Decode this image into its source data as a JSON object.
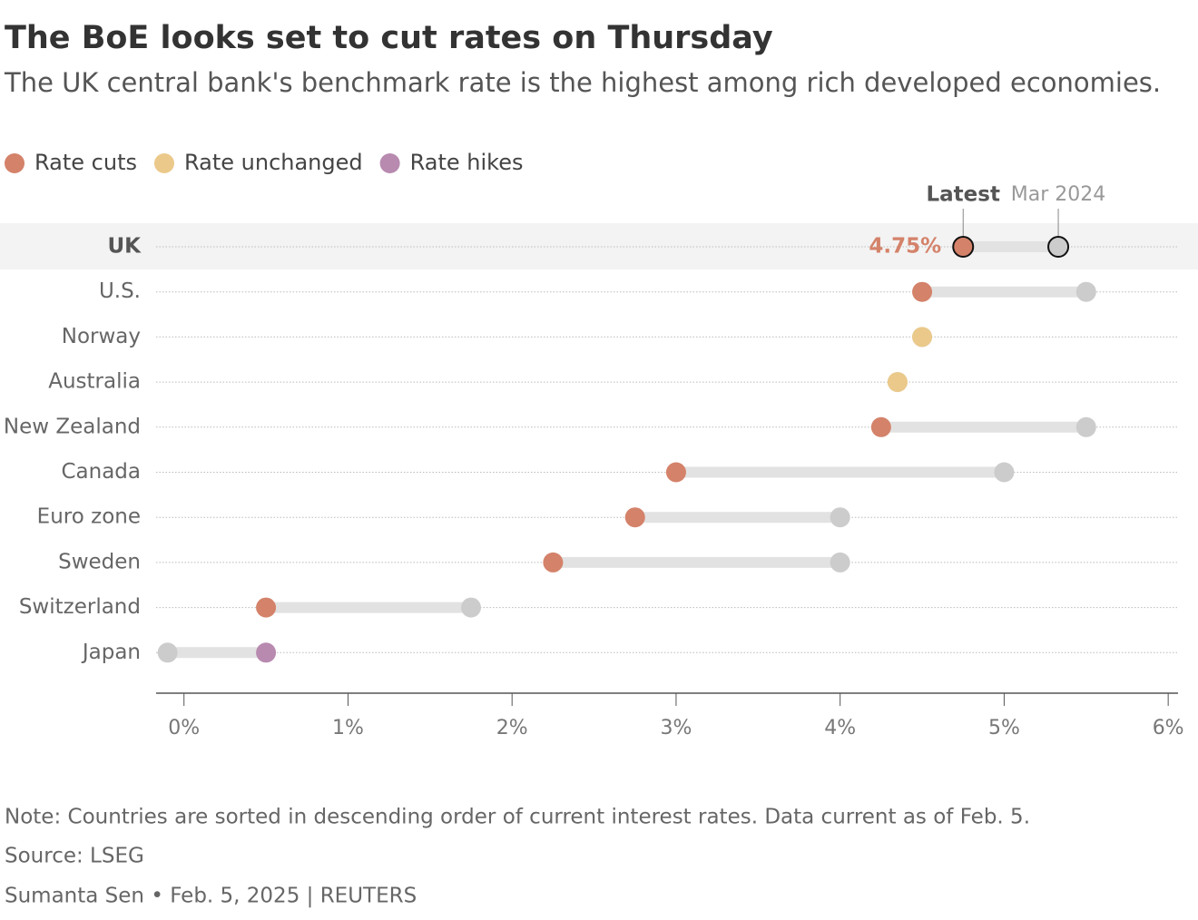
{
  "chart_data": {
    "type": "dumbbell",
    "title": "The BoE looks set to cut rates on Thursday",
    "subtitle": "The UK central bank's benchmark rate is the highest among rich developed economies.",
    "legend": [
      {
        "name": "Rate cuts",
        "color": "#d4826a"
      },
      {
        "name": "Rate unchanged",
        "color": "#ebc98a"
      },
      {
        "name": "Rate hikes",
        "color": "#b88ab0"
      }
    ],
    "categories": [
      "UK",
      "U.S.",
      "Norway",
      "Australia",
      "New Zealand",
      "Canada",
      "Euro zone",
      "Sweden",
      "Switzerland",
      "Japan"
    ],
    "highlight": "UK",
    "series": [
      {
        "name": "Latest",
        "values": [
          4.75,
          4.5,
          4.5,
          4.35,
          4.25,
          3.0,
          2.75,
          2.25,
          0.5,
          0.5
        ],
        "value_labels": [
          "4.75%",
          null,
          null,
          null,
          null,
          null,
          null,
          null,
          null,
          null
        ],
        "colors": [
          "#d4826a",
          "#d4826a",
          "#ebc98a",
          "#ebc98a",
          "#d4826a",
          "#d4826a",
          "#d4826a",
          "#d4826a",
          "#d4826a",
          "#b88ab0"
        ]
      },
      {
        "name": "Mar 2024",
        "color": "#cccccc",
        "values": [
          5.33,
          5.5,
          4.5,
          4.35,
          5.5,
          5.0,
          4.0,
          4.0,
          1.75,
          -0.1
        ]
      }
    ],
    "xlim": [
      -0.17,
      6.06
    ],
    "xticks": [
      {
        "value": 0,
        "label": "0%"
      },
      {
        "value": 1,
        "label": "1%"
      },
      {
        "value": 2,
        "label": "2%"
      },
      {
        "value": 3,
        "label": "3%"
      },
      {
        "value": 4,
        "label": "4%"
      },
      {
        "value": 5,
        "label": "5%"
      },
      {
        "value": 6,
        "label": "6%"
      }
    ],
    "note": "Note: Countries are sorted in descending order of current interest rates. Data current as of Feb. 5.",
    "source": "Source: LSEG",
    "byline": "Sumanta Sen • Feb. 5, 2025 | REUTERS"
  }
}
